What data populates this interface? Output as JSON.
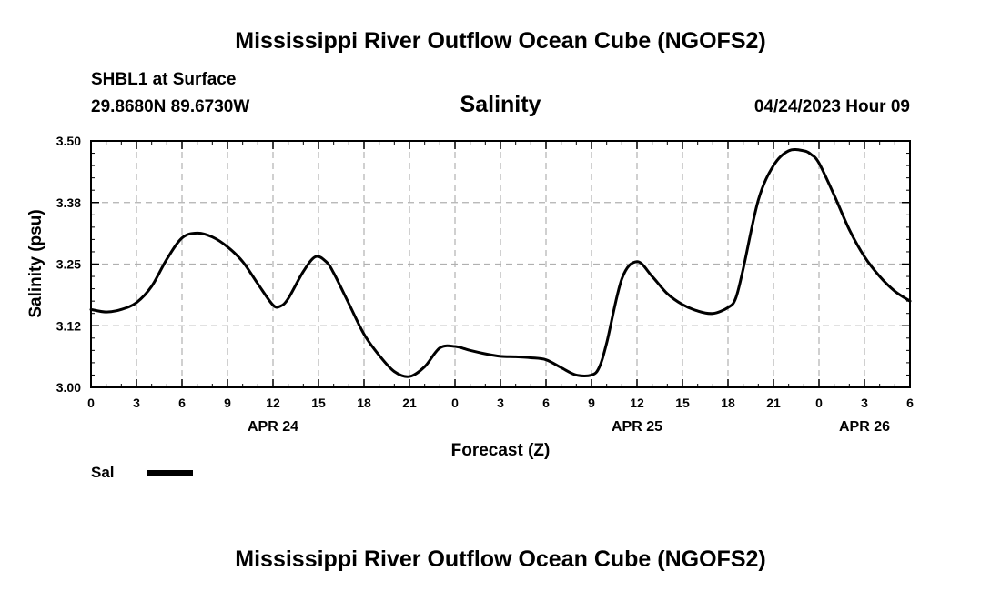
{
  "page": {
    "title_top": "Mississippi River Outflow Ocean Cube (NGOFS2)",
    "title_bottom": "Mississippi River Outflow Ocean Cube (NGOFS2)",
    "station": "SHBL1 at Surface",
    "coordinates": "29.8680N  89.6730W",
    "variable": "Salinity",
    "datetime": "04/24/2023 Hour 09"
  },
  "legend": {
    "label": "Sal"
  },
  "colors": {
    "line": "#000000",
    "grid": "#b0b0b0",
    "frame": "#000000"
  },
  "chart_data": {
    "type": "line",
    "xlabel": "Forecast (Z)",
    "ylabel": "Salinity (psu)",
    "xlim": [
      0,
      54
    ],
    "ylim": [
      3.0,
      3.5
    ],
    "xticks": [
      0,
      3,
      6,
      9,
      12,
      15,
      18,
      21,
      24,
      27,
      30,
      33,
      36,
      39,
      42,
      45,
      48,
      51,
      54
    ],
    "xtick_labels": [
      "0",
      "3",
      "6",
      "9",
      "12",
      "15",
      "18",
      "21",
      "0",
      "3",
      "6",
      "9",
      "12",
      "15",
      "18",
      "21",
      "0",
      "3",
      "6"
    ],
    "yticks": [
      3.0,
      3.125,
      3.25,
      3.375,
      3.5
    ],
    "ytick_labels": [
      "3.00",
      "3.12",
      "3.25",
      "3.38",
      "3.50"
    ],
    "date_labels": [
      {
        "x": 12,
        "label": "APR 24"
      },
      {
        "x": 36,
        "label": "APR 25"
      },
      {
        "x": 51,
        "label": "APR 26"
      }
    ],
    "grid": true,
    "series": [
      {
        "name": "Sal",
        "x": [
          0,
          1,
          2,
          3,
          4,
          5,
          6,
          7,
          8,
          9,
          10,
          11,
          12,
          12.5,
          13,
          14,
          14.8,
          15.5,
          16,
          17,
          18,
          19,
          20,
          21,
          22,
          23,
          24,
          25,
          26,
          27,
          28,
          29,
          30,
          31,
          32,
          33,
          33.5,
          34,
          35,
          36,
          37,
          38,
          39,
          40,
          41,
          42,
          42.5,
          43,
          44,
          45,
          46,
          47,
          47.5,
          48,
          49,
          50,
          51,
          52,
          53,
          54
        ],
        "values": [
          3.158,
          3.153,
          3.158,
          3.172,
          3.205,
          3.26,
          3.303,
          3.313,
          3.305,
          3.285,
          3.255,
          3.21,
          3.167,
          3.165,
          3.18,
          3.235,
          3.265,
          3.255,
          3.232,
          3.17,
          3.108,
          3.065,
          3.032,
          3.022,
          3.042,
          3.08,
          3.083,
          3.075,
          3.068,
          3.063,
          3.062,
          3.06,
          3.056,
          3.04,
          3.025,
          3.025,
          3.04,
          3.09,
          3.22,
          3.255,
          3.225,
          3.19,
          3.168,
          3.155,
          3.15,
          3.162,
          3.18,
          3.24,
          3.38,
          3.45,
          3.48,
          3.48,
          3.472,
          3.455,
          3.39,
          3.32,
          3.265,
          3.225,
          3.195,
          3.175
        ]
      }
    ]
  }
}
